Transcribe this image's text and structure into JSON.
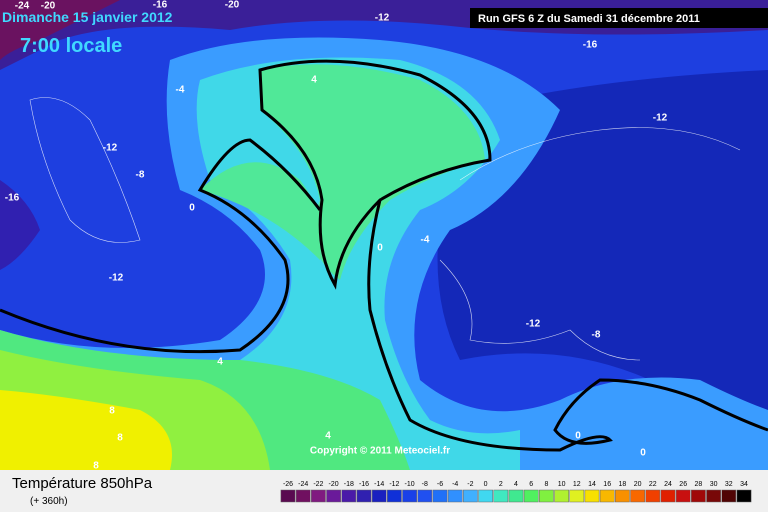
{
  "header": {
    "date": "Dimanche 15 janvier 2012",
    "time": "7:00 locale",
    "run": "Run GFS 6 Z du Samedi 31 décembre 2011"
  },
  "map": {
    "contour_labels": [
      "-24",
      "-20",
      "-16",
      "-20",
      "-12",
      "-16",
      "4",
      "-4",
      "-12",
      "-12",
      "-8",
      "-16",
      "0",
      "0",
      "-4",
      "-12",
      "-12",
      "-8",
      "4",
      "8",
      "8",
      "4",
      "0",
      "0",
      "8"
    ],
    "copyright": "Copyright © 2011 Meteociel.fr"
  },
  "footer": {
    "title": "Température 850hPa",
    "lead": "(+ 360h)"
  },
  "scale": {
    "ticks": [
      -26,
      -24,
      -22,
      -20,
      -18,
      -16,
      -14,
      -12,
      -10,
      -8,
      -6,
      -4,
      -2,
      0,
      2,
      4,
      6,
      8,
      10,
      12,
      14,
      16,
      18,
      20,
      22,
      24,
      26,
      28,
      30,
      32,
      34
    ],
    "colors": [
      "#5a0a50",
      "#701060",
      "#801a80",
      "#6a1a9a",
      "#4a1aa8",
      "#3020b0",
      "#1a20c0",
      "#1030d8",
      "#1a40e8",
      "#2050f0",
      "#2070f8",
      "#3090ff",
      "#40b0ff",
      "#40d8f0",
      "#40e8c0",
      "#40e890",
      "#50f060",
      "#80f040",
      "#b0f030",
      "#e0f020",
      "#f8e000",
      "#f8b800",
      "#f89000",
      "#f86800",
      "#f04000",
      "#e02000",
      "#c81010",
      "#a00808",
      "#780808",
      "#500404",
      "#000000"
    ]
  }
}
